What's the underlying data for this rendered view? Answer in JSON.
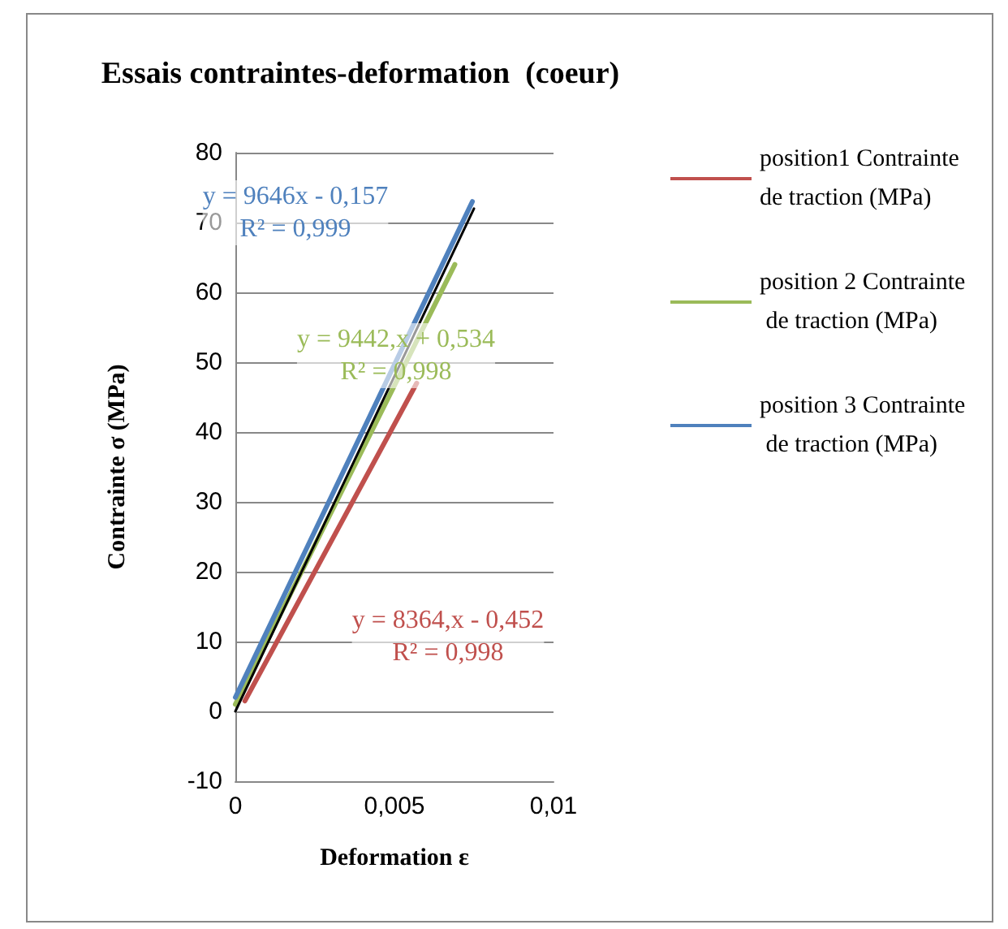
{
  "chart_data": {
    "type": "line",
    "title": "Essais contraintes-deformation  (coeur)",
    "xlabel": "Deformation ɛ",
    "ylabel": "Contrainte σ (MPa)",
    "series": [
      {
        "name": "position1 Contrainte de traction (MPa)",
        "color": "#c0504d",
        "x": [
          0.0003,
          0.0057
        ],
        "values": [
          1.5,
          47
        ]
      },
      {
        "name": "position 2 Contrainte de traction (MPa)",
        "color": "#9bbb59",
        "x": [
          0,
          0.0069
        ],
        "values": [
          1,
          64
        ]
      },
      {
        "name": "position 3 Contrainte de traction (MPa)",
        "color": "#4f81bd",
        "x": [
          0,
          0.00745
        ],
        "values": [
          2,
          73
        ]
      },
      {
        "color": "#000000",
        "x": [
          0,
          0.0075
        ],
        "values": [
          0,
          72
        ]
      }
    ],
    "annotations": [
      "y = 8364,x - 0,452\nR² = 0,998",
      "y = 9442,x + 0,534\nR² = 0,998",
      "y = 9646x - 0,157\nR² = 0,999"
    ],
    "xlim": [
      0,
      0.01
    ],
    "xticks": [
      {
        "value": 0,
        "label": "0"
      },
      {
        "value": 0.005,
        "label": "0,005"
      },
      {
        "value": 0.01,
        "label": "0,01"
      }
    ],
    "ylim": [
      -10,
      80
    ],
    "yticks": [
      -10,
      0,
      10,
      20,
      30,
      40,
      50,
      60,
      70,
      80
    ],
    "grid": "y",
    "legend": "right",
    "marker": "none",
    "line_style": "solid"
  }
}
